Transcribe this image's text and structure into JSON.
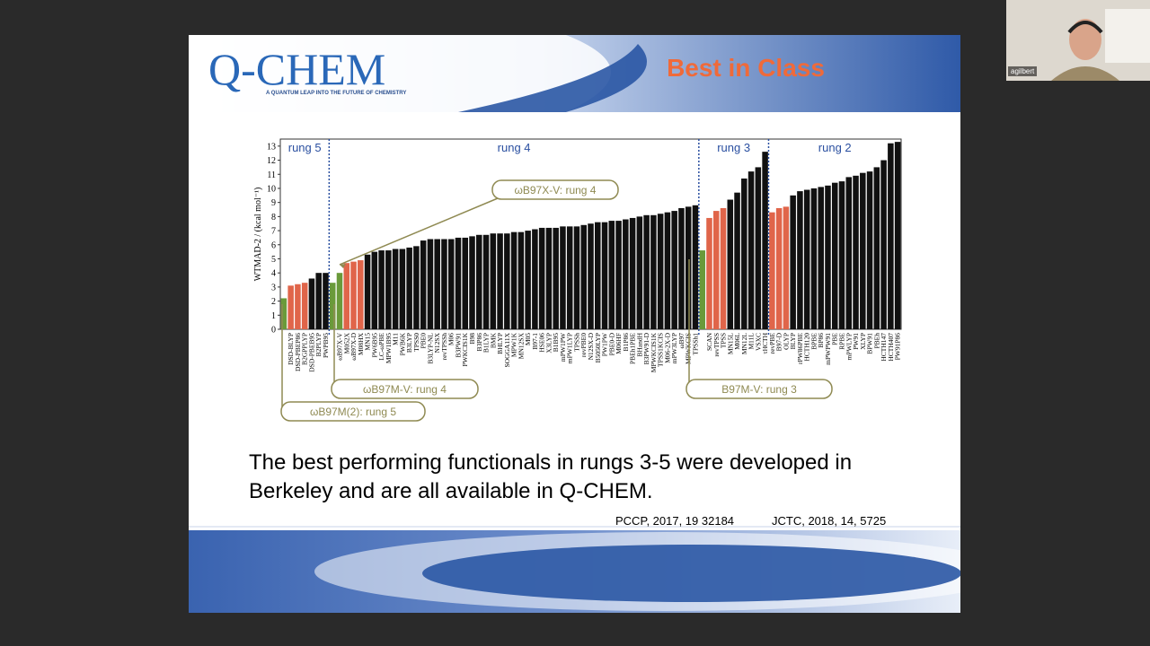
{
  "participant": {
    "name": "agilbert"
  },
  "slide": {
    "logo": "Q-CHEM",
    "tagline": "A QUANTUM LEAP INTO THE FUTURE OF CHEMISTRY",
    "title": "Best in Class",
    "body": "The best performing functionals in rungs 3-5 were developed in Berkeley and are all available in Q-CHEM.",
    "references": [
      "PCCP, 2017, 19 32184",
      "JCTC, 2018, 14, 5725"
    ]
  },
  "chart_data": {
    "type": "bar",
    "y_label": "WTMAD-2 / (kcal mol⁻¹)",
    "ylim": [
      0,
      13.5
    ],
    "yticks": [
      0,
      1,
      2,
      3,
      4,
      5,
      6,
      7,
      8,
      9,
      10,
      11,
      12,
      13
    ],
    "groups": [
      {
        "name": "rung 5",
        "categories": [
          null,
          "DSD-BLYP",
          "DSD-PBEP86",
          "B2GPPLYP",
          "DSD-PBEB95",
          "B2PLYP",
          "PWPB95"
        ],
        "values": [
          2.2,
          3.1,
          3.2,
          3.3,
          3.6,
          4.0,
          4.0
        ],
        "colors": [
          "#6a9a3a",
          "#e0654a",
          "#e0654a",
          "#e0654a",
          "#111111",
          "#111111",
          "#111111"
        ]
      },
      {
        "name": "rung 4",
        "categories": [
          null,
          "ωB97X-V",
          "M052X",
          "ωB97X-D",
          "M08HX",
          "MN15",
          "PW6B95",
          "LC-ωPBE",
          "MPW1B95",
          "M11",
          "PWB6K",
          "B3LYP",
          "TPSS0",
          "PBE0",
          "B3LYP-NL",
          "N12SX",
          "revTPSSh",
          "M06",
          "B3PW91",
          "PWKCIS1K",
          "B98",
          "B3P86",
          "B1LYP",
          "BMK",
          "BHLYP",
          "SOGGA11X",
          "MPW1K",
          "MN12SX",
          "M05",
          "B97-1",
          "HSE06",
          "X3LYP",
          "B1B95",
          "mPW1PW",
          "mPW1LYP",
          "TPSSh",
          "revPBE0",
          "N12SX-D",
          "B5050LYP",
          "PW1PW",
          "PBE0-D",
          "M06HF",
          "B1P86",
          "PBEh1PBE",
          "BHandH",
          "B3PW91-D",
          "MPWKCIS1K",
          "TPSS1KCIS",
          "M06-2X-D",
          "mPW3LYP",
          "ωB97",
          "MPWKCIS",
          "TPSSh1"
        ],
        "values": [
          3.3,
          4.0,
          4.7,
          4.8,
          4.9,
          5.3,
          5.5,
          5.6,
          5.6,
          5.7,
          5.7,
          5.8,
          5.9,
          6.3,
          6.4,
          6.4,
          6.4,
          6.4,
          6.5,
          6.5,
          6.6,
          6.7,
          6.7,
          6.8,
          6.8,
          6.8,
          6.9,
          6.9,
          7.0,
          7.1,
          7.2,
          7.2,
          7.2,
          7.3,
          7.3,
          7.3,
          7.4,
          7.5,
          7.6,
          7.6,
          7.7,
          7.7,
          7.8,
          7.9,
          8.0,
          8.1,
          8.1,
          8.2,
          8.3,
          8.4,
          8.6,
          8.7,
          8.8
        ],
        "colors": [
          "#6a9a3a",
          "#6a9a3a",
          "#e0654a",
          "#e0654a",
          "#e0654a",
          "#111111",
          "#111111",
          "#111111",
          "#111111",
          "#111111",
          "#111111",
          "#111111",
          "#111111",
          "#111111",
          "#111111",
          "#111111",
          "#111111",
          "#111111",
          "#111111",
          "#111111",
          "#111111",
          "#111111",
          "#111111",
          "#111111",
          "#111111",
          "#111111",
          "#111111",
          "#111111",
          "#111111",
          "#111111",
          "#111111",
          "#111111",
          "#111111",
          "#111111",
          "#111111",
          "#111111",
          "#111111",
          "#111111",
          "#111111",
          "#111111",
          "#111111",
          "#111111",
          "#111111",
          "#111111",
          "#111111",
          "#111111",
          "#111111",
          "#111111",
          "#111111",
          "#111111",
          "#111111",
          "#111111",
          "#111111"
        ]
      },
      {
        "name": "rung 3",
        "categories": [
          null,
          "SCAN",
          "revTPSS",
          "TPSS",
          "MN15L",
          "M06L",
          "MN12L",
          "M11L",
          "VSXC",
          "τHCTH"
        ],
        "values": [
          5.6,
          7.9,
          8.4,
          8.6,
          9.2,
          9.7,
          10.7,
          11.2,
          11.5,
          12.6
        ],
        "colors": [
          "#6a9a3a",
          "#e0654a",
          "#e0654a",
          "#e0654a",
          "#111111",
          "#111111",
          "#111111",
          "#111111",
          "#111111",
          "#111111"
        ]
      },
      {
        "name": "rung 2",
        "categories": [
          "revPBE",
          "B97-D",
          "OLYP",
          "BLYP",
          "rPW86PBE",
          "HCTH120",
          "BPBE",
          "BP86",
          "mPWPW91",
          "PBE",
          "RPBE",
          "mPWLYP",
          "PW91",
          "XLYP",
          "BPW91",
          "PBEh",
          "HCTH147",
          "HCTH407",
          "PW91P86"
        ],
        "values": [
          8.3,
          8.6,
          8.7,
          9.5,
          9.8,
          9.9,
          10.0,
          10.1,
          10.2,
          10.4,
          10.5,
          10.8,
          10.9,
          11.1,
          11.2,
          11.5,
          12.0,
          13.2,
          13.3
        ],
        "colors": [
          "#e0654a",
          "#e0654a",
          "#e0654a",
          "#111111",
          "#111111",
          "#111111",
          "#111111",
          "#111111",
          "#111111",
          "#111111",
          "#111111",
          "#111111",
          "#111111",
          "#111111",
          "#111111",
          "#111111",
          "#111111",
          "#111111",
          "#111111"
        ]
      }
    ],
    "annotations": [
      "ωB97X-V: rung 4",
      "ωB97M-V: rung 4",
      "ωB97M(2): rung 5",
      "B97M-V: rung 3"
    ]
  }
}
